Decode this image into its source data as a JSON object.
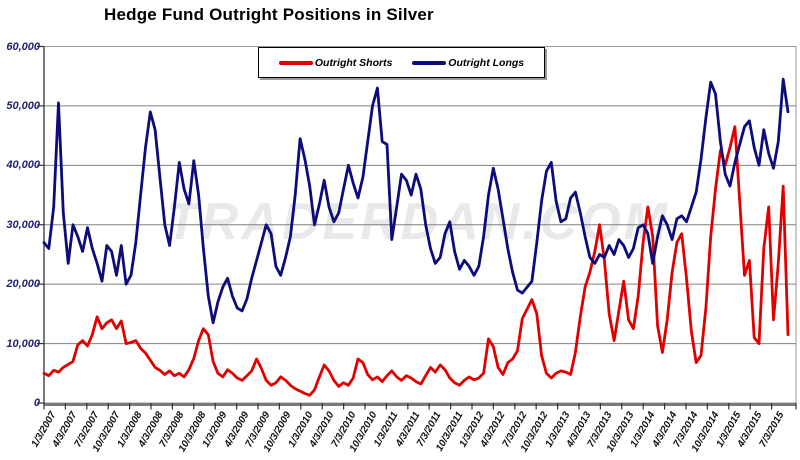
{
  "page": {
    "background": "#ffffff"
  },
  "chart_data": {
    "type": "line",
    "title": "Hedge Fund Outright Positions in Silver",
    "watermark": "TRADERDAN.COM",
    "xlabel": "",
    "ylabel": "",
    "ylim": [
      0,
      60000
    ],
    "grid": "horizontal",
    "legend_position": "top-center",
    "y_ticks": [
      0,
      10000,
      20000,
      30000,
      40000,
      50000,
      60000
    ],
    "y_tick_labels": [
      "0",
      "10,000",
      "20,000",
      "30,000",
      "40,000",
      "50,000",
      "60,000"
    ],
    "x_tick_labels": [
      "1/3/2007",
      "4/3/2007",
      "7/3/2007",
      "10/3/2007",
      "1/3/2008",
      "4/3/2008",
      "7/3/2008",
      "10/3/2008",
      "1/3/2009",
      "4/3/2009",
      "7/3/2009",
      "10/3/2009",
      "1/3/2010",
      "4/3/2010",
      "7/3/2010",
      "10/3/2010",
      "1/3/2011",
      "4/3/2011",
      "7/3/2011",
      "10/3/2011",
      "1/3/2012",
      "4/3/2012",
      "7/3/2012",
      "10/3/2012",
      "1/3/2013",
      "4/3/2013",
      "7/3/2013",
      "10/3/2013",
      "1/3/2014",
      "4/3/2014",
      "7/3/2014",
      "10/3/2014",
      "1/3/2015",
      "4/3/2015",
      "7/3/2015"
    ],
    "colors": {
      "axis_tick_label": "#1f1f78",
      "x_tick_label": "#111111",
      "gridline": "#808080",
      "plot_border": "#999999",
      "bottom_axis": "#7a7a7a",
      "left_axis": "#333333",
      "watermark": "#e9e9e9"
    },
    "series": [
      {
        "name": "Outright Shorts",
        "color": "#e00000",
        "values": [
          5000,
          4600,
          5500,
          5200,
          6000,
          6500,
          7000,
          9800,
          10500,
          9600,
          11500,
          14500,
          12500,
          13500,
          14000,
          12500,
          13800,
          10000,
          10200,
          10500,
          9200,
          8400,
          7200,
          6000,
          5500,
          4800,
          5400,
          4600,
          5000,
          4400,
          5600,
          7500,
          10500,
          12500,
          11500,
          7000,
          5000,
          4400,
          5600,
          5000,
          4200,
          3800,
          4600,
          5400,
          7400,
          5800,
          3800,
          3000,
          3400,
          4400,
          3800,
          3000,
          2400,
          2000,
          1600,
          1300,
          2200,
          4400,
          6400,
          5400,
          3800,
          2800,
          3400,
          3000,
          4200,
          7400,
          6800,
          4800,
          3900,
          4400,
          3600,
          4600,
          5400,
          4400,
          3800,
          4600,
          4200,
          3600,
          3200,
          4600,
          6000,
          5200,
          6400,
          5600,
          4200,
          3400,
          3000,
          3800,
          4400,
          3900,
          4200,
          5000,
          10800,
          9500,
          6000,
          4800,
          6800,
          7400,
          8800,
          14200,
          15800,
          17400,
          15000,
          8000,
          5000,
          4200,
          5000,
          5400,
          5200,
          4800,
          8500,
          14500,
          19500,
          22000,
          25500,
          30000,
          24000,
          15000,
          10500,
          15500,
          20500,
          14000,
          12500,
          18000,
          27000,
          33000,
          28000,
          13000,
          8500,
          14000,
          22000,
          27000,
          28500,
          21000,
          12000,
          6800,
          8000,
          16000,
          28000,
          36000,
          42500,
          40000,
          43000,
          46500,
          34000,
          21500,
          24000,
          11000,
          10000,
          26000,
          33000,
          14000,
          23500,
          36500,
          11500
        ]
      },
      {
        "name": "Outright Longs",
        "color": "#0c0c7a",
        "values": [
          27000,
          26000,
          33000,
          50500,
          32000,
          23500,
          30000,
          28000,
          25500,
          29500,
          26000,
          23500,
          20500,
          26500,
          25500,
          21500,
          26500,
          20000,
          21500,
          27000,
          35000,
          43000,
          49000,
          46000,
          38000,
          30000,
          26500,
          33000,
          40500,
          36000,
          33500,
          40800,
          35000,
          26000,
          18000,
          13500,
          17000,
          19500,
          21000,
          18000,
          16000,
          15500,
          17500,
          21000,
          24000,
          27000,
          30000,
          28500,
          23000,
          21500,
          24500,
          28000,
          35000,
          44500,
          41000,
          36500,
          30000,
          33500,
          37500,
          33000,
          30500,
          32000,
          36000,
          40000,
          37000,
          34500,
          38000,
          44000,
          50000,
          53000,
          44000,
          43500,
          27500,
          33000,
          38500,
          37500,
          35000,
          38500,
          36000,
          30000,
          26000,
          23500,
          24500,
          28500,
          30500,
          25500,
          22500,
          24000,
          23000,
          21500,
          23000,
          28000,
          35000,
          39500,
          36000,
          31000,
          26000,
          22000,
          19000,
          18500,
          19500,
          20500,
          27000,
          34000,
          39000,
          40500,
          34000,
          30500,
          31000,
          34500,
          35500,
          32000,
          28000,
          24500,
          23500,
          25000,
          24500,
          26500,
          25000,
          27500,
          26500,
          24500,
          26000,
          29500,
          30000,
          28500,
          23500,
          28000,
          31500,
          30000,
          27500,
          31000,
          31500,
          30500,
          33000,
          35500,
          41000,
          48000,
          54000,
          52000,
          44000,
          38500,
          36500,
          40500,
          43500,
          46500,
          47500,
          43000,
          40000,
          46000,
          42000,
          39500,
          44000,
          54500,
          49000
        ]
      }
    ]
  }
}
